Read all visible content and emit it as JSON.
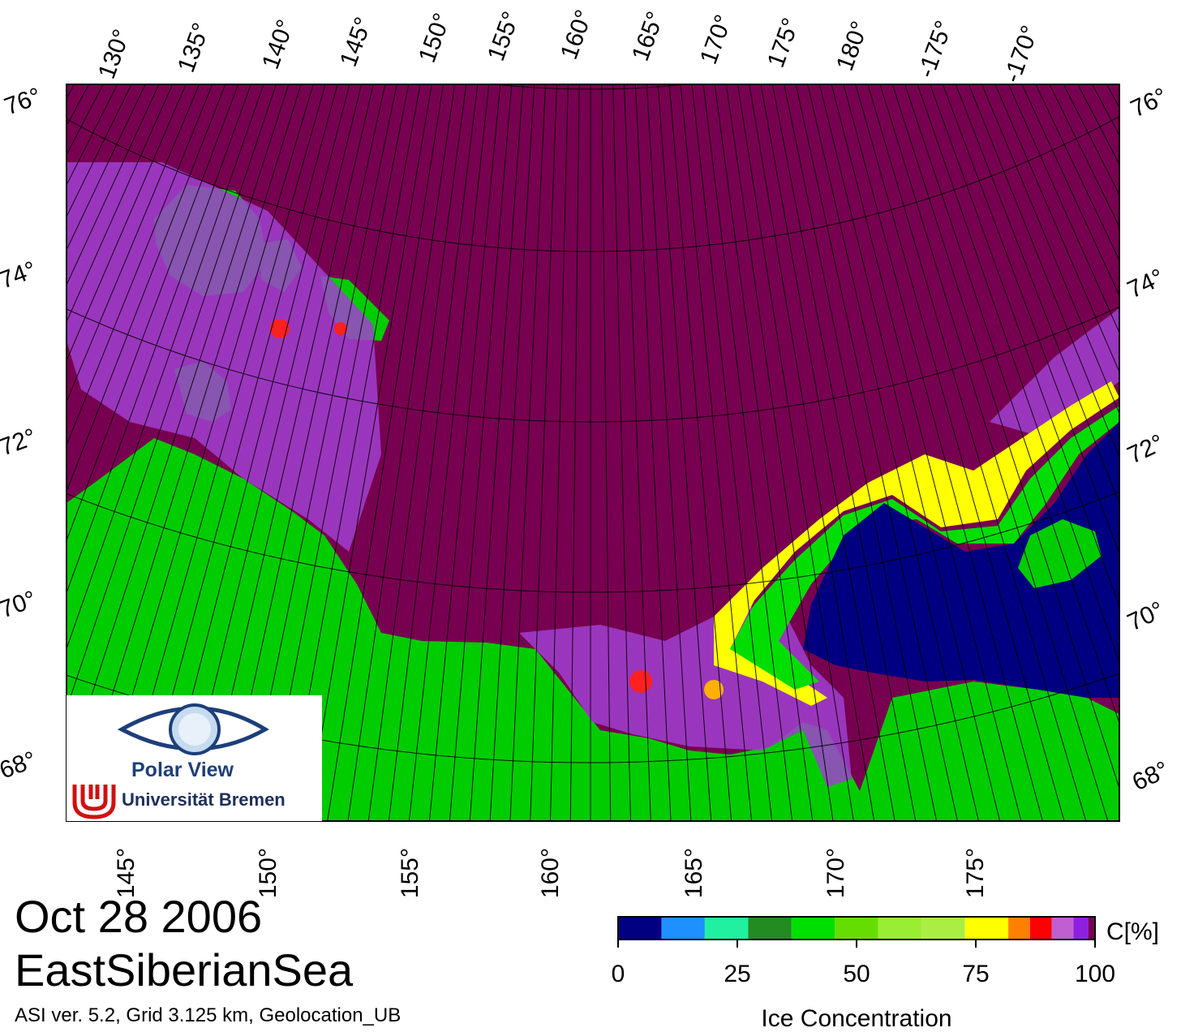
{
  "map": {
    "date": "Oct 28 2006",
    "region": "EastSiberianSea",
    "processing_info": "ASI ver. 5.2,  Grid 3.125 km, Geolocation_UB",
    "top_lon_labels": [
      "130°",
      "135°",
      "140°",
      "145°",
      "150°",
      "155°",
      "160°",
      "165°",
      "170°",
      "175°",
      "180°",
      "-175°",
      "-170°"
    ],
    "bottom_lon_labels": [
      "145°",
      "150°",
      "155°",
      "160°",
      "165°",
      "170°",
      "175°"
    ],
    "left_lat_labels": [
      "76°",
      "74°",
      "72°",
      "70°",
      "68°"
    ],
    "right_lat_labels": [
      "76°",
      "74°",
      "72°",
      "70°",
      "68°"
    ],
    "colors": {
      "high_ice": "#780050",
      "land": "#00cc00",
      "open_water": "#000080",
      "frame": "#000000"
    }
  },
  "legend": {
    "unit_label": "C[%]",
    "title": "Ice Concentration",
    "tick_labels": [
      "0",
      "25",
      "50",
      "75",
      "100"
    ],
    "color_bins": [
      "#000080",
      "#1e90ff",
      "#20f0a0",
      "#228b22",
      "#00e000",
      "#66dd00",
      "#99ee33",
      "#aaee44",
      "#ffff00",
      "#ff8000",
      "#ff0000",
      "#c060d0",
      "#9020e0",
      "#780050"
    ]
  },
  "logo": {
    "name": "Polar View",
    "institution": "Universität Bremen",
    "icon": "eye-globe-icon"
  }
}
